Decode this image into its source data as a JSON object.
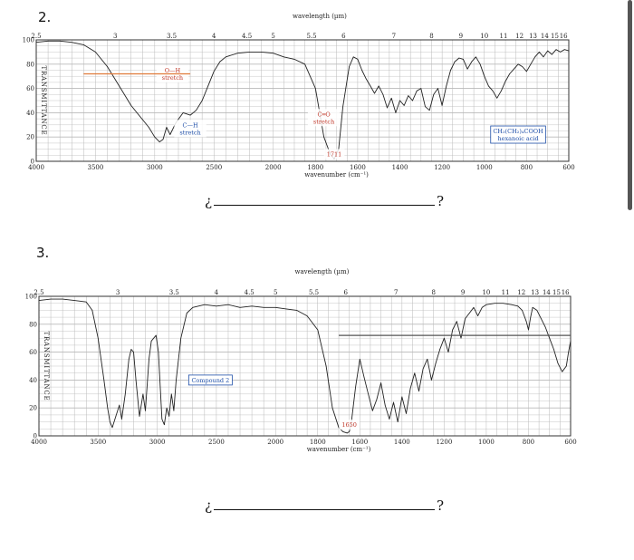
{
  "questions": [
    {
      "number": "2.",
      "answer_open": "¿",
      "answer_close": "?"
    },
    {
      "number": "3.",
      "answer_open": "¿",
      "answer_close": "?"
    }
  ],
  "chart_data": [
    {
      "type": "line",
      "xlabel": "wavenumber (cm⁻¹)",
      "top_axis_label": "wavelength (µm)",
      "ylabel": "TRANSMITTANCE",
      "x_ticks": [
        "4000",
        "3500",
        "3000",
        "2500",
        "2000",
        "1800",
        "1600",
        "1400",
        "1200",
        "1000",
        "800",
        "600"
      ],
      "x_tick_values": [
        4000,
        3500,
        3000,
        2500,
        2000,
        1800,
        1600,
        1400,
        1200,
        1000,
        800,
        600
      ],
      "top_ticks": [
        "2.5",
        "3",
        "3.5",
        "4",
        "4.5",
        "5",
        "5.5",
        "6",
        "7",
        "8",
        "9",
        "10",
        "11",
        "12",
        "13",
        "14",
        "15",
        "16"
      ],
      "top_tick_values": [
        2.5,
        3,
        3.5,
        4,
        4.5,
        5,
        5.5,
        6,
        7,
        8,
        9,
        10,
        11,
        12,
        13,
        14,
        15,
        16
      ],
      "y_ticks": [
        "0",
        "20",
        "40",
        "60",
        "80",
        "100"
      ],
      "ylim": [
        0,
        100
      ],
      "annotations": [
        {
          "text": "O—H",
          "text2": "stretch",
          "color": "#c0392b",
          "x": 2850,
          "y": 72
        },
        {
          "text": "C—H",
          "text2": "stretch",
          "color": "#1f4fa8",
          "x": 2700,
          "y": 27
        },
        {
          "text": "C═O",
          "text2": "stretch",
          "color": "#c0392b",
          "x": 1760,
          "y": 36
        },
        {
          "text": "1711",
          "color": "#c0392b",
          "x": 1711,
          "y": 6
        },
        {
          "text": "CH₃(CH₂)₄COOH",
          "text2": "hexanoic acid",
          "color": "#1f4fa8",
          "x": 840,
          "y": 22,
          "boxed": true
        }
      ],
      "series": [
        {
          "points": [
            [
              4000,
              98
            ],
            [
              3900,
              99
            ],
            [
              3800,
              99
            ],
            [
              3700,
              98
            ],
            [
              3600,
              96
            ],
            [
              3500,
              90
            ],
            [
              3400,
              78
            ],
            [
              3300,
              62
            ],
            [
              3200,
              46
            ],
            [
              3100,
              34
            ],
            [
              3050,
              28
            ],
            [
              3000,
              20
            ],
            [
              2960,
              16
            ],
            [
              2930,
              18
            ],
            [
              2900,
              28
            ],
            [
              2870,
              22
            ],
            [
              2820,
              32
            ],
            [
              2760,
              40
            ],
            [
              2700,
              38
            ],
            [
              2650,
              42
            ],
            [
              2600,
              50
            ],
            [
              2550,
              62
            ],
            [
              2500,
              74
            ],
            [
              2450,
              82
            ],
            [
              2400,
              86
            ],
            [
              2300,
              89
            ],
            [
              2200,
              90
            ],
            [
              2100,
              90
            ],
            [
              2000,
              89
            ],
            [
              1950,
              86
            ],
            [
              1900,
              84
            ],
            [
              1850,
              80
            ],
            [
              1800,
              60
            ],
            [
              1760,
              20
            ],
            [
              1730,
              6
            ],
            [
              1711,
              2
            ],
            [
              1690,
              10
            ],
            [
              1670,
              45
            ],
            [
              1640,
              78
            ],
            [
              1620,
              86
            ],
            [
              1600,
              84
            ],
            [
              1580,
              75
            ],
            [
              1560,
              68
            ],
            [
              1540,
              62
            ],
            [
              1520,
              56
            ],
            [
              1500,
              62
            ],
            [
              1480,
              55
            ],
            [
              1460,
              44
            ],
            [
              1440,
              52
            ],
            [
              1420,
              40
            ],
            [
              1400,
              50
            ],
            [
              1380,
              46
            ],
            [
              1360,
              54
            ],
            [
              1340,
              50
            ],
            [
              1320,
              58
            ],
            [
              1300,
              60
            ],
            [
              1280,
              45
            ],
            [
              1260,
              42
            ],
            [
              1240,
              55
            ],
            [
              1220,
              60
            ],
            [
              1200,
              46
            ],
            [
              1180,
              62
            ],
            [
              1160,
              75
            ],
            [
              1140,
              82
            ],
            [
              1120,
              85
            ],
            [
              1100,
              84
            ],
            [
              1080,
              76
            ],
            [
              1060,
              82
            ],
            [
              1040,
              86
            ],
            [
              1020,
              80
            ],
            [
              1000,
              70
            ],
            [
              980,
              62
            ],
            [
              960,
              58
            ],
            [
              940,
              52
            ],
            [
              920,
              58
            ],
            [
              900,
              66
            ],
            [
              880,
              72
            ],
            [
              860,
              76
            ],
            [
              840,
              80
            ],
            [
              820,
              78
            ],
            [
              800,
              74
            ],
            [
              780,
              80
            ],
            [
              760,
              86
            ],
            [
              740,
              90
            ],
            [
              720,
              86
            ],
            [
              700,
              91
            ],
            [
              680,
              88
            ],
            [
              660,
              92
            ],
            [
              640,
              90
            ],
            [
              620,
              92
            ],
            [
              600,
              91
            ]
          ]
        }
      ]
    },
    {
      "type": "line",
      "xlabel": "wavenumber (cm⁻¹)",
      "top_axis_label": "wavelength (µm)",
      "ylabel": "TRANSMITTANCE",
      "x_ticks": [
        "4000",
        "3500",
        "3000",
        "2500",
        "2000",
        "1800",
        "1600",
        "1400",
        "1200",
        "1000",
        "800",
        "600"
      ],
      "x_tick_values": [
        4000,
        3500,
        3000,
        2500,
        2000,
        1800,
        1600,
        1400,
        1200,
        1000,
        800,
        600
      ],
      "top_ticks": [
        "2.5",
        "3",
        "3.5",
        "4",
        "4.5",
        "5",
        "5.5",
        "6",
        "7",
        "8",
        "9",
        "10",
        "11",
        "12",
        "13",
        "14",
        "15",
        "16"
      ],
      "top_tick_values": [
        2.5,
        3,
        3.5,
        4,
        4.5,
        5,
        5.5,
        6,
        7,
        8,
        9,
        10,
        11,
        12,
        13,
        14,
        15,
        16
      ],
      "y_ticks": [
        "0",
        "20",
        "40",
        "60",
        "80",
        "100"
      ],
      "ylim": [
        0,
        100
      ],
      "annotations": [
        {
          "text": "Compound 2",
          "color": "#1f4fa8",
          "x": 2550,
          "y": 40,
          "boxed": true
        },
        {
          "text": "1650",
          "color": "#c0392b",
          "x": 1650,
          "y": 8
        }
      ],
      "series": [
        {
          "points": [
            [
              4000,
              97
            ],
            [
              3900,
              98
            ],
            [
              3800,
              98
            ],
            [
              3700,
              97
            ],
            [
              3600,
              96
            ],
            [
              3550,
              90
            ],
            [
              3500,
              70
            ],
            [
              3450,
              40
            ],
            [
              3420,
              20
            ],
            [
              3400,
              10
            ],
            [
              3380,
              6
            ],
            [
              3350,
              14
            ],
            [
              3320,
              22
            ],
            [
              3300,
              12
            ],
            [
              3270,
              30
            ],
            [
              3240,
              55
            ],
            [
              3220,
              62
            ],
            [
              3200,
              60
            ],
            [
              3180,
              40
            ],
            [
              3150,
              14
            ],
            [
              3120,
              30
            ],
            [
              3100,
              18
            ],
            [
              3070,
              55
            ],
            [
              3050,
              68
            ],
            [
              3030,
              70
            ],
            [
              3010,
              72
            ],
            [
              2990,
              60
            ],
            [
              2960,
              12
            ],
            [
              2940,
              8
            ],
            [
              2920,
              20
            ],
            [
              2900,
              14
            ],
            [
              2880,
              30
            ],
            [
              2860,
              18
            ],
            [
              2840,
              40
            ],
            [
              2800,
              70
            ],
            [
              2750,
              88
            ],
            [
              2700,
              92
            ],
            [
              2600,
              94
            ],
            [
              2500,
              93
            ],
            [
              2400,
              94
            ],
            [
              2300,
              92
            ],
            [
              2200,
              93
            ],
            [
              2100,
              92
            ],
            [
              2000,
              92
            ],
            [
              1950,
              91
            ],
            [
              1900,
              90
            ],
            [
              1850,
              86
            ],
            [
              1800,
              76
            ],
            [
              1760,
              50
            ],
            [
              1730,
              20
            ],
            [
              1700,
              6
            ],
            [
              1680,
              3
            ],
            [
              1660,
              2
            ],
            [
              1650,
              3
            ],
            [
              1640,
              10
            ],
            [
              1620,
              35
            ],
            [
              1600,
              55
            ],
            [
              1580,
              42
            ],
            [
              1560,
              30
            ],
            [
              1540,
              18
            ],
            [
              1520,
              26
            ],
            [
              1500,
              38
            ],
            [
              1480,
              22
            ],
            [
              1460,
              12
            ],
            [
              1440,
              24
            ],
            [
              1420,
              10
            ],
            [
              1400,
              28
            ],
            [
              1380,
              16
            ],
            [
              1360,
              34
            ],
            [
              1340,
              45
            ],
            [
              1320,
              32
            ],
            [
              1300,
              48
            ],
            [
              1280,
              55
            ],
            [
              1260,
              40
            ],
            [
              1240,
              52
            ],
            [
              1220,
              62
            ],
            [
              1200,
              70
            ],
            [
              1180,
              60
            ],
            [
              1160,
              76
            ],
            [
              1140,
              82
            ],
            [
              1120,
              70
            ],
            [
              1100,
              84
            ],
            [
              1080,
              88
            ],
            [
              1060,
              92
            ],
            [
              1040,
              86
            ],
            [
              1020,
              92
            ],
            [
              1000,
              94
            ],
            [
              960,
              95
            ],
            [
              920,
              95
            ],
            [
              880,
              94
            ],
            [
              850,
              93
            ],
            [
              830,
              90
            ],
            [
              810,
              82
            ],
            [
              800,
              76
            ],
            [
              790,
              85
            ],
            [
              780,
              92
            ],
            [
              760,
              90
            ],
            [
              740,
              84
            ],
            [
              720,
              78
            ],
            [
              700,
              70
            ],
            [
              680,
              62
            ],
            [
              660,
              52
            ],
            [
              640,
              46
            ],
            [
              620,
              50
            ],
            [
              610,
              60
            ],
            [
              600,
              68
            ]
          ]
        }
      ]
    }
  ]
}
